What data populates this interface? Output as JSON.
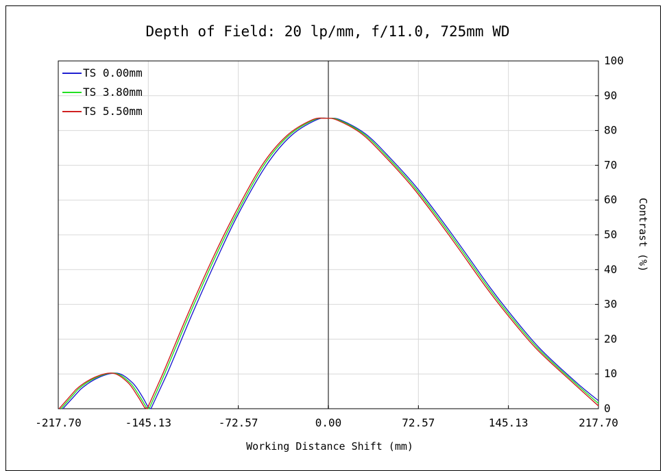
{
  "chart_data": {
    "type": "line",
    "title": "Depth of Field: 20 lp/mm, f/11.0, 725mm WD",
    "xlabel": "Working Distance Shift (mm)",
    "ylabel": "Contrast (%)",
    "xlim": [
      -217.7,
      217.7
    ],
    "ylim": [
      0,
      100
    ],
    "x_ticks": [
      "-217.70",
      "-145.13",
      "-72.57",
      "0.00",
      "72.57",
      "145.13",
      "217.70"
    ],
    "y_ticks": [
      "0",
      "10",
      "20",
      "30",
      "40",
      "50",
      "60",
      "70",
      "80",
      "90",
      "100"
    ],
    "y_axis_side": "right",
    "grid": true,
    "legend_position": "top-left",
    "series": [
      {
        "name": "TS 0.00mm",
        "color": "#1f1fd0",
        "x": [
          -214,
          -200,
          -185,
          -170,
          -158,
          -150,
          -145,
          -143,
          -130,
          -110,
          -90,
          -72.57,
          -50,
          -30,
          -10,
          0,
          10,
          30,
          50,
          72.57,
          100,
          130,
          145.13,
          170,
          200,
          217.7
        ],
        "y": [
          0,
          5.5,
          9,
          10.2,
          7.5,
          3.5,
          0.3,
          0,
          10,
          27,
          43,
          56,
          70,
          78.5,
          83,
          83.5,
          83,
          79,
          72,
          63,
          50,
          35,
          28,
          17.5,
          7.5,
          2.3
        ]
      },
      {
        "name": "TS 3.80mm",
        "color": "#22e022",
        "x": [
          -215.5,
          -202,
          -187,
          -172,
          -160,
          -152,
          -146.5,
          -144.5,
          -132,
          -112,
          -92,
          -74,
          -52,
          -32,
          -12,
          -1.5,
          8.5,
          28.5,
          48.5,
          71,
          98.5,
          128.5,
          143.6,
          168.5,
          198.5,
          217.7
        ],
        "y": [
          0,
          5.5,
          9,
          10.2,
          7.5,
          3.5,
          0.3,
          0,
          10,
          27,
          43,
          56,
          70,
          78.5,
          83,
          83.5,
          83,
          79,
          72,
          63,
          50,
          35,
          28,
          17.5,
          7.5,
          1.5
        ]
      },
      {
        "name": "TS 5.50mm",
        "color": "#d02020",
        "x": [
          -217,
          -203.5,
          -188.5,
          -173.5,
          -161.5,
          -153.5,
          -148,
          -146,
          -133.5,
          -113.5,
          -93.5,
          -75.5,
          -53.5,
          -33.5,
          -13.5,
          -3,
          7,
          27,
          47,
          69.5,
          97,
          127,
          142.1,
          167,
          197,
          217.7
        ],
        "y": [
          0,
          5.5,
          9,
          10.2,
          7.5,
          3.5,
          0.3,
          0,
          10,
          27,
          43,
          56,
          70,
          78.5,
          83,
          83.5,
          83,
          79,
          72,
          63,
          50,
          35,
          28,
          17.5,
          7.5,
          0.8
        ]
      }
    ]
  }
}
